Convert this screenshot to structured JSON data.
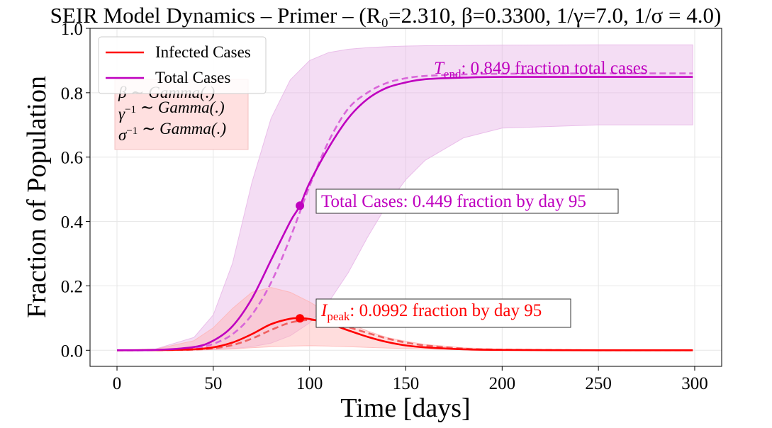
{
  "chart_data": {
    "type": "line",
    "title": "SEIR Model Dynamics – Primer – (R₀=2.310, β=0.3300, 1/γ=7.0, 1/σ = 4.0)",
    "xlabel": "Time [days]",
    "ylabel": "Fraction of Population",
    "xlim": [
      -14,
      314
    ],
    "ylim": [
      -0.05,
      1.0
    ],
    "xticks": [
      0,
      50,
      100,
      150,
      200,
      250,
      300
    ],
    "xtick_labels": [
      "0",
      "50",
      "100",
      "150",
      "200",
      "250",
      "300"
    ],
    "yticks": [
      0.0,
      0.2,
      0.4,
      0.6,
      0.8,
      1.0
    ],
    "ytick_labels": [
      "0.0",
      "0.2",
      "0.4",
      "0.6",
      "0.8",
      "1.0"
    ],
    "grid": true,
    "legend_position": "top-left",
    "colors": {
      "infected": "#ff0000",
      "total": "#bf00bf",
      "total_band": "#e6b3e6",
      "infected_band": "#ffb3b3",
      "infected_dashed": "#f06060",
      "total_dashed": "#d966d9"
    },
    "series": [
      {
        "name": "Infected Cases",
        "style": "solid",
        "x": [
          0,
          20,
          40,
          50,
          60,
          70,
          80,
          90,
          95,
          100,
          110,
          120,
          130,
          140,
          150,
          160,
          180,
          200,
          250,
          299
        ],
        "values": [
          0.0,
          0.0005,
          0.003,
          0.009,
          0.024,
          0.05,
          0.081,
          0.098,
          0.0992,
          0.097,
          0.083,
          0.062,
          0.042,
          0.026,
          0.015,
          0.009,
          0.003,
          0.001,
          0.0,
          0.0
        ]
      },
      {
        "name": "Total Cases",
        "style": "solid",
        "x": [
          0,
          20,
          40,
          50,
          60,
          70,
          80,
          90,
          95,
          100,
          110,
          120,
          130,
          140,
          150,
          160,
          180,
          200,
          250,
          299
        ],
        "values": [
          0.0,
          0.001,
          0.01,
          0.03,
          0.075,
          0.16,
          0.28,
          0.4,
          0.449,
          0.52,
          0.63,
          0.72,
          0.78,
          0.815,
          0.832,
          0.842,
          0.847,
          0.849,
          0.849,
          0.849
        ]
      },
      {
        "style": "dashed",
        "x": [
          0,
          20,
          40,
          50,
          60,
          70,
          80,
          90,
          100,
          110,
          120,
          130,
          140,
          150,
          160,
          180,
          200,
          250,
          299
        ],
        "values": [
          0.0,
          0.0003,
          0.002,
          0.006,
          0.016,
          0.036,
          0.063,
          0.086,
          0.094,
          0.088,
          0.072,
          0.054,
          0.037,
          0.024,
          0.015,
          0.005,
          0.002,
          0.0,
          0.0
        ]
      },
      {
        "style": "dashed",
        "x": [
          0,
          20,
          40,
          50,
          60,
          70,
          80,
          90,
          100,
          110,
          120,
          130,
          140,
          150,
          160,
          180,
          200,
          250,
          299
        ],
        "values": [
          0.0,
          0.0005,
          0.006,
          0.02,
          0.05,
          0.11,
          0.21,
          0.35,
          0.51,
          0.65,
          0.75,
          0.8,
          0.83,
          0.845,
          0.852,
          0.857,
          0.859,
          0.86,
          0.86
        ]
      }
    ],
    "bands": [
      {
        "x": [
          0,
          20,
          40,
          50,
          60,
          70,
          80,
          90,
          100,
          110,
          120,
          130,
          140,
          150,
          160,
          180,
          200,
          250,
          299
        ],
        "lower": [
          0.0,
          0.0,
          0.0005,
          0.002,
          0.005,
          0.011,
          0.022,
          0.045,
          0.085,
          0.15,
          0.24,
          0.35,
          0.45,
          0.53,
          0.59,
          0.66,
          0.69,
          0.7,
          0.7
        ],
        "upper": [
          0.0,
          0.004,
          0.04,
          0.11,
          0.27,
          0.52,
          0.72,
          0.84,
          0.9,
          0.925,
          0.935,
          0.94,
          0.943,
          0.945,
          0.946,
          0.947,
          0.948,
          0.949,
          0.949
        ]
      },
      {
        "x": [
          0,
          20,
          40,
          50,
          60,
          70,
          80,
          90,
          100,
          110,
          120,
          130,
          140,
          150,
          160,
          180,
          200,
          250,
          299
        ],
        "lower": [
          0.0,
          0.0,
          0.0005,
          0.002,
          0.004,
          0.008,
          0.011,
          0.013,
          0.014,
          0.013,
          0.011,
          0.009,
          0.007,
          0.005,
          0.004,
          0.002,
          0.001,
          0.0,
          0.0
        ],
        "upper": [
          0.0,
          0.003,
          0.03,
          0.07,
          0.13,
          0.18,
          0.195,
          0.18,
          0.15,
          0.115,
          0.085,
          0.06,
          0.04,
          0.028,
          0.018,
          0.008,
          0.003,
          0.0,
          0.0
        ]
      }
    ],
    "markers": [
      {
        "x": 95,
        "y": 0.449,
        "color": "#bf00bf"
      },
      {
        "x": 95,
        "y": 0.0992,
        "color": "#ff0000"
      }
    ],
    "annotations": {
      "t_end": {
        "symbol": "T",
        "subscript": "end",
        "text": ": 0.849 fraction total cases",
        "color": "#bf00bf"
      },
      "total_cases": {
        "text": "Total Cases: 0.449 fraction by day 95",
        "color": "#bf00bf"
      },
      "i_peak": {
        "symbol": "I",
        "subscript": "peak",
        "text": ": 0.0992 fraction by day 95",
        "color": "#ff0000"
      }
    },
    "priors_box": {
      "lines": [
        {
          "symbol": "β",
          "sup": "",
          "rest": " ∼ Gamma(.)"
        },
        {
          "symbol": "γ",
          "sup": "−1",
          "rest": " ∼ Gamma(.)"
        },
        {
          "symbol": "σ",
          "sup": "−1",
          "rest": " ∼ Gamma(.)"
        }
      ]
    }
  }
}
